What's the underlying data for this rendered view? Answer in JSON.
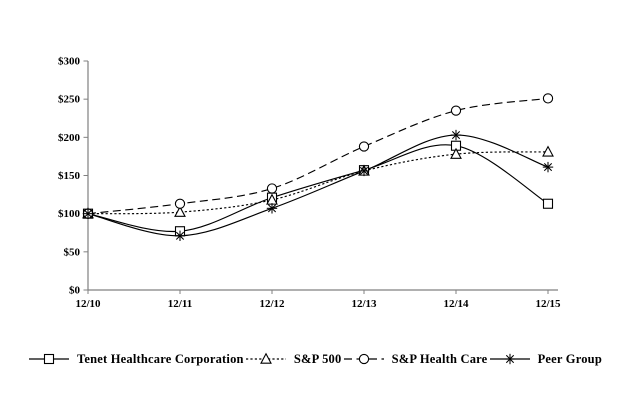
{
  "chart_data": {
    "type": "line",
    "title": "",
    "xlabel": "",
    "ylabel": "",
    "categories": [
      "12/10",
      "12/11",
      "12/12",
      "12/13",
      "12/14",
      "12/15"
    ],
    "series": [
      {
        "name": "Tenet Healthcare Corporation",
        "marker": "square",
        "line": "solid",
        "values": [
          100,
          77,
          121,
          157,
          189,
          113
        ]
      },
      {
        "name": "S&P 500",
        "marker": "triangle",
        "line": "dotted",
        "values": [
          100,
          102,
          118,
          156,
          178,
          181
        ]
      },
      {
        "name": "S&P Health Care",
        "marker": "circle",
        "line": "dashed",
        "values": [
          100,
          113,
          133,
          188,
          235,
          251
        ]
      },
      {
        "name": "Peer Group",
        "marker": "asterisk",
        "line": "solid",
        "values": [
          100,
          71,
          107,
          156,
          203,
          161
        ]
      }
    ],
    "ylim": [
      0,
      300
    ],
    "ytick_step": 50,
    "ytick_labels": [
      "$0",
      "$50",
      "$100",
      "$150",
      "$200",
      "$250",
      "$300"
    ],
    "grid": false,
    "legend_position": "bottom",
    "colors": {
      "series": "#000000",
      "axis": "#808080",
      "text": "#000000",
      "background": "#ffffff"
    }
  }
}
